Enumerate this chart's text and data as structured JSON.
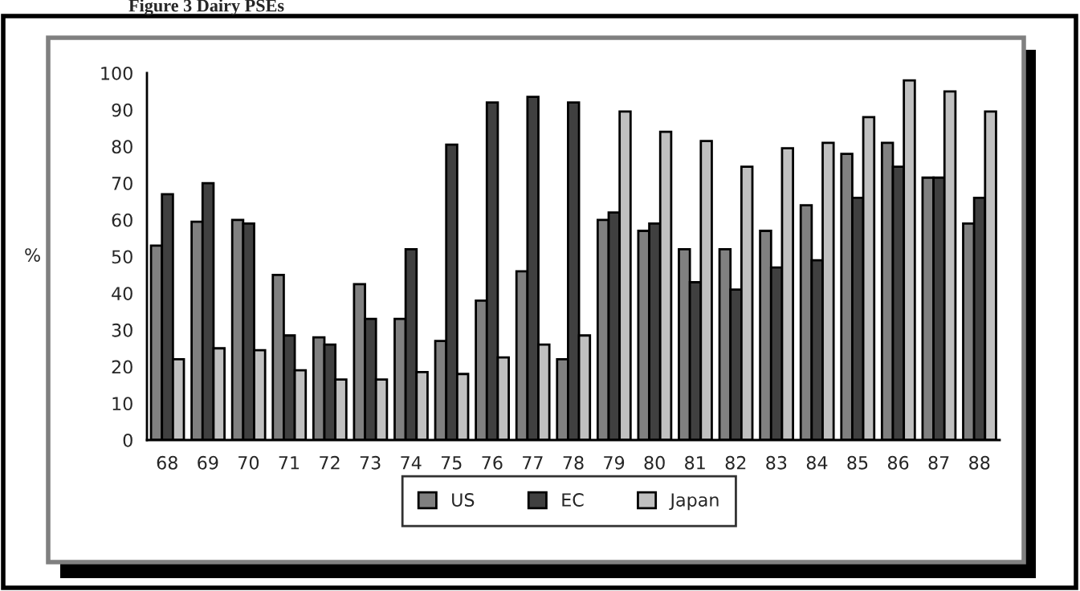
{
  "chart_data": {
    "type": "bar",
    "title": "Figure 3 Dairy PSEs",
    "ylabel": "%",
    "categories": [
      "68",
      "69",
      "70",
      "71",
      "72",
      "73",
      "74",
      "75",
      "76",
      "77",
      "78",
      "79",
      "80",
      "81",
      "82",
      "83",
      "84",
      "85",
      "86",
      "87",
      "88"
    ],
    "series": [
      {
        "name": "US",
        "color": "#808080",
        "values": [
          53,
          59.5,
          60,
          45,
          28,
          42.5,
          33,
          27,
          38,
          46,
          22,
          60,
          57,
          52,
          52,
          57,
          64,
          78,
          81,
          71.5,
          59
        ]
      },
      {
        "name": "EC",
        "color": "#404040",
        "values": [
          67,
          70,
          59,
          28.5,
          26,
          33,
          52,
          80.5,
          92,
          93.5,
          92,
          62,
          59,
          43,
          41,
          47,
          49,
          66,
          74.5,
          71.5,
          66
        ]
      },
      {
        "name": "Japan",
        "color": "#c0c0c0",
        "values": [
          22,
          25,
          24.5,
          19,
          16.5,
          16.5,
          18.5,
          18,
          22.5,
          26,
          28.5,
          89.5,
          84,
          81.5,
          74.5,
          79.5,
          81,
          88,
          98,
          95,
          89.5
        ]
      }
    ],
    "ylim": [
      0,
      100
    ],
    "yticks": [
      0,
      10,
      20,
      30,
      40,
      50,
      60,
      70,
      80,
      90,
      100
    ],
    "grid": false,
    "legend": "bottom"
  }
}
